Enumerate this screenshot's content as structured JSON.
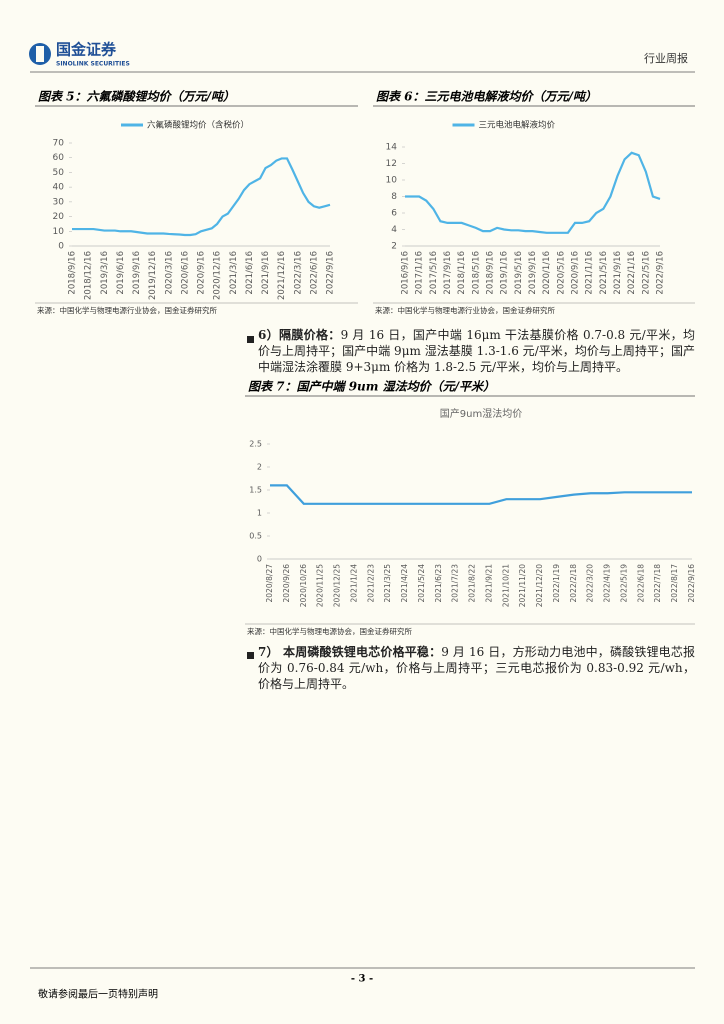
{
  "header": {
    "logo_cn": "国金证券",
    "logo_en": "SINOLINK SECURITIES",
    "report_type": "行业周报"
  },
  "chart_data": [
    {
      "type": "line",
      "heading": "图表 5：六氟磷酸锂均价（万元/吨）",
      "categories": [
        "2018/9/16",
        null,
        null,
        "2018/12/16",
        null,
        null,
        "2019/3/16",
        null,
        null,
        "2019/6/16",
        null,
        null,
        "2019/9/16",
        null,
        null,
        "2019/12/16",
        null,
        null,
        "2020/3/16",
        null,
        null,
        "2020/6/16",
        null,
        null,
        "2020/9/16",
        null,
        null,
        "2020/12/16",
        null,
        null,
        "2021/3/16",
        null,
        null,
        "2021/6/16",
        null,
        null,
        "2021/9/16",
        null,
        null,
        "2021/12/16",
        null,
        null,
        "2022/3/16",
        null,
        null,
        "2022/6/16",
        null,
        null,
        "2022/9/16"
      ],
      "series": [
        {
          "name": "六氟磷酸锂均价（含税价）",
          "color": "#4fb4e6",
          "values": [
            11.5,
            11.5,
            11.5,
            11.5,
            11.5,
            11,
            10.5,
            10.5,
            10.5,
            10,
            10,
            10,
            9.5,
            9,
            8.5,
            8.5,
            8.5,
            8.5,
            8.2,
            8,
            7.8,
            7.5,
            7.5,
            8,
            10,
            11,
            12,
            15,
            20,
            22,
            27,
            32,
            38,
            42,
            44,
            46,
            53,
            55,
            58,
            59.5,
            59.5,
            52,
            44,
            36,
            30,
            27,
            26,
            27,
            28
          ]
        }
      ],
      "ylim": [
        0,
        70
      ],
      "yticks": [
        0,
        10,
        20,
        30,
        40,
        50,
        60,
        70
      ],
      "source": "来源：中国化学与物理电源行业协会，国金证券研究所"
    },
    {
      "type": "line",
      "heading": "图表 6：三元电池电解液均价（万元/吨）",
      "categories": [
        "2016/9/16",
        null,
        "2017/1/16",
        null,
        "2017/5/16",
        null,
        "2017/9/16",
        null,
        "2018/1/16",
        null,
        "2018/5/16",
        null,
        "2018/9/16",
        null,
        "2019/1/16",
        null,
        "2019/5/16",
        null,
        "2019/9/16",
        null,
        "2020/1/16",
        null,
        "2020/5/16",
        null,
        "2020/9/16",
        null,
        "2021/1/16",
        null,
        "2021/5/16",
        null,
        "2021/9/16",
        null,
        "2022/1/16",
        null,
        "2022/5/16",
        null,
        "2022/9/16"
      ],
      "series": [
        {
          "name": "三元电池电解液均价",
          "color": "#4fb4e6",
          "values": [
            8,
            8,
            8,
            7.5,
            6.5,
            5,
            4.8,
            4.8,
            4.8,
            4.5,
            4.2,
            3.8,
            3.8,
            4.2,
            4,
            3.9,
            3.9,
            3.8,
            3.8,
            3.7,
            3.6,
            3.6,
            3.6,
            3.6,
            4.8,
            4.8,
            5,
            6,
            6.5,
            8,
            10.5,
            12.5,
            13.3,
            13,
            11,
            8,
            7.7
          ]
        }
      ],
      "ylim": [
        2,
        14
      ],
      "yticks": [
        2,
        4,
        6,
        8,
        10,
        12,
        14
      ],
      "source": "来源：中国化学与物理电源行业协会，国金证券研究所"
    },
    {
      "type": "line",
      "heading": "图表 7：国产中端 9um 湿法均价（元/平米）",
      "title": "国产9um湿法均价",
      "categories": [
        "2020/8/27",
        "2020/9/26",
        "2020/10/26",
        "2020/11/25",
        "2020/12/25",
        "2021/1/24",
        "2021/2/23",
        "2021/3/25",
        "2021/4/24",
        "2021/5/24",
        "2021/6/23",
        "2021/7/23",
        "2021/8/22",
        "2021/9/21",
        "2021/10/21",
        "2021/11/20",
        "2021/12/20",
        "2022/1/19",
        "2022/2/18",
        "2022/3/20",
        "2022/4/19",
        "2022/5/19",
        "2022/6/18",
        "2022/7/18",
        "2022/8/17",
        "2022/9/16"
      ],
      "values": [
        1.6,
        1.6,
        1.2,
        1.2,
        1.2,
        1.2,
        1.2,
        1.2,
        1.2,
        1.2,
        1.2,
        1.2,
        1.2,
        1.2,
        1.3,
        1.3,
        1.3,
        1.35,
        1.4,
        1.43,
        1.43,
        1.45,
        1.45,
        1.45,
        1.45,
        1.45
      ],
      "color": "#3f9fdc",
      "ylim": [
        0,
        2.5
      ],
      "yticks": [
        0,
        0.5,
        1,
        1.5,
        2,
        2.5
      ],
      "source": "来源：中国化学与物理电源协会，国金证券研究所"
    }
  ],
  "paragraphs": [
    {
      "lead": "6）隔膜价格：",
      "text": "9 月 16 日，国产中端 16μm 干法基膜价格 0.7-0.8 元/平米，均价与上周持平；国产中端 9μm 湿法基膜 1.3-1.6 元/平米，均价与上周持平；国产中端湿法涂覆膜 9+3μm 价格为 1.8-2.5 元/平米，均价与上周持平。"
    },
    {
      "lead": "7） 本周磷酸铁锂电芯价格平稳：",
      "text": "9 月 16 日，方形动力电池中，磷酸铁锂电芯报价为 0.76-0.84 元/wh，价格与上周持平；三元电芯报价为 0.83-0.92 元/wh，价格与上周持平。"
    }
  ],
  "footer": {
    "page": "- 3 -",
    "disclaimer": "敬请参阅最后一页特别声明"
  }
}
